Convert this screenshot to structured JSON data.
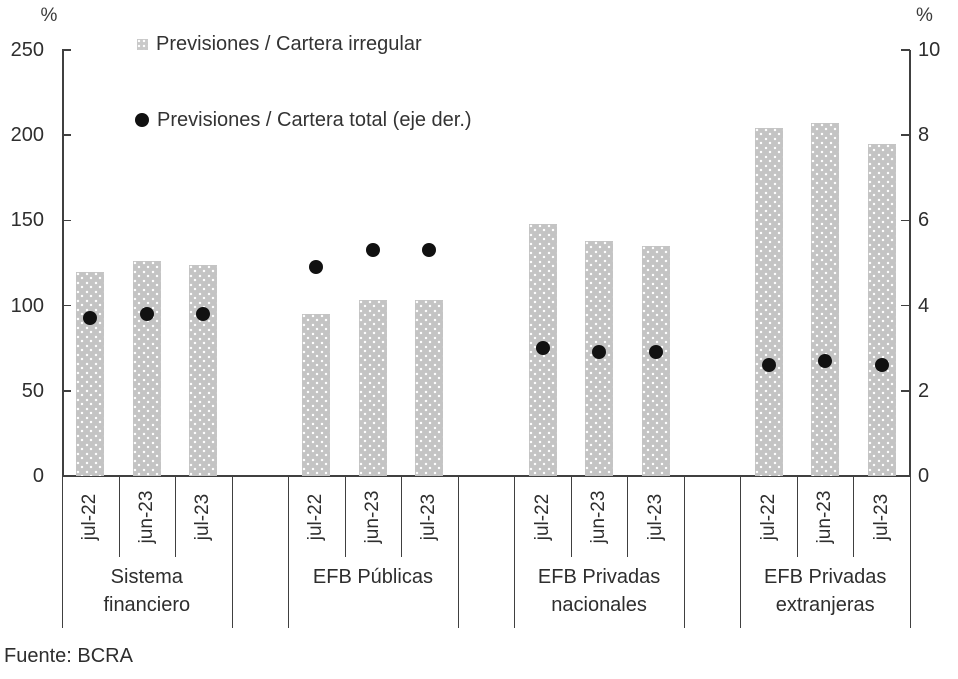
{
  "chart_data": {
    "type": "bar",
    "title": "",
    "source": "Fuente: BCRA",
    "legend": [
      {
        "swatch": "gray-square",
        "label": "Previsiones / Cartera irregular",
        "axis": "left"
      },
      {
        "swatch": "black-dot",
        "label": "Previsiones / Cartera total (eje der.)",
        "axis": "right"
      }
    ],
    "left_axis": {
      "unit": "%",
      "min": 0,
      "max": 250,
      "step": 50,
      "ticks": [
        "250",
        "200",
        "150",
        "100",
        "50",
        "0"
      ]
    },
    "right_axis": {
      "unit": "%",
      "min": 0,
      "max": 10,
      "step": 2,
      "ticks": [
        "10",
        "8",
        "6",
        "4",
        "2",
        "0"
      ]
    },
    "grid": "off",
    "legend_position": "top-left",
    "categories": [
      "jul-22",
      "jun-23",
      "jul-23"
    ],
    "groups": [
      {
        "label": "Sistema financiero",
        "label_lines": [
          "Sistema",
          "financiero"
        ],
        "categories": [
          "jul-22",
          "jun-23",
          "jul-23"
        ],
        "bar_values": [
          120,
          126,
          124
        ],
        "dot_values": [
          3.7,
          3.8,
          3.8
        ]
      },
      {
        "label": "EFB Públicas",
        "label_lines": [
          "EFB Públicas"
        ],
        "categories": [
          "jul-22",
          "jun-23",
          "jul-23"
        ],
        "bar_values": [
          95,
          103,
          103
        ],
        "dot_values": [
          4.9,
          5.3,
          5.3
        ]
      },
      {
        "label": "EFB Privadas nacionales",
        "label_lines": [
          "EFB Privadas",
          "nacionales"
        ],
        "categories": [
          "jul-22",
          "jun-23",
          "jul-23"
        ],
        "bar_values": [
          148,
          138,
          135
        ],
        "dot_values": [
          3.0,
          2.9,
          2.9
        ]
      },
      {
        "label": "EFB Privadas extranjeras",
        "label_lines": [
          "EFB Privadas",
          "extranjeras"
        ],
        "categories": [
          "jul-22",
          "jun-23",
          "jul-23"
        ],
        "bar_values": [
          204,
          207,
          195
        ],
        "dot_values": [
          2.6,
          2.7,
          2.6
        ]
      }
    ],
    "colors": {
      "bar_fill": "#c4c4c4",
      "bar_dot_texture": "#ffffff",
      "marker": "#111111",
      "axis": "#404040",
      "legend_square": "#c9c9c9"
    }
  }
}
